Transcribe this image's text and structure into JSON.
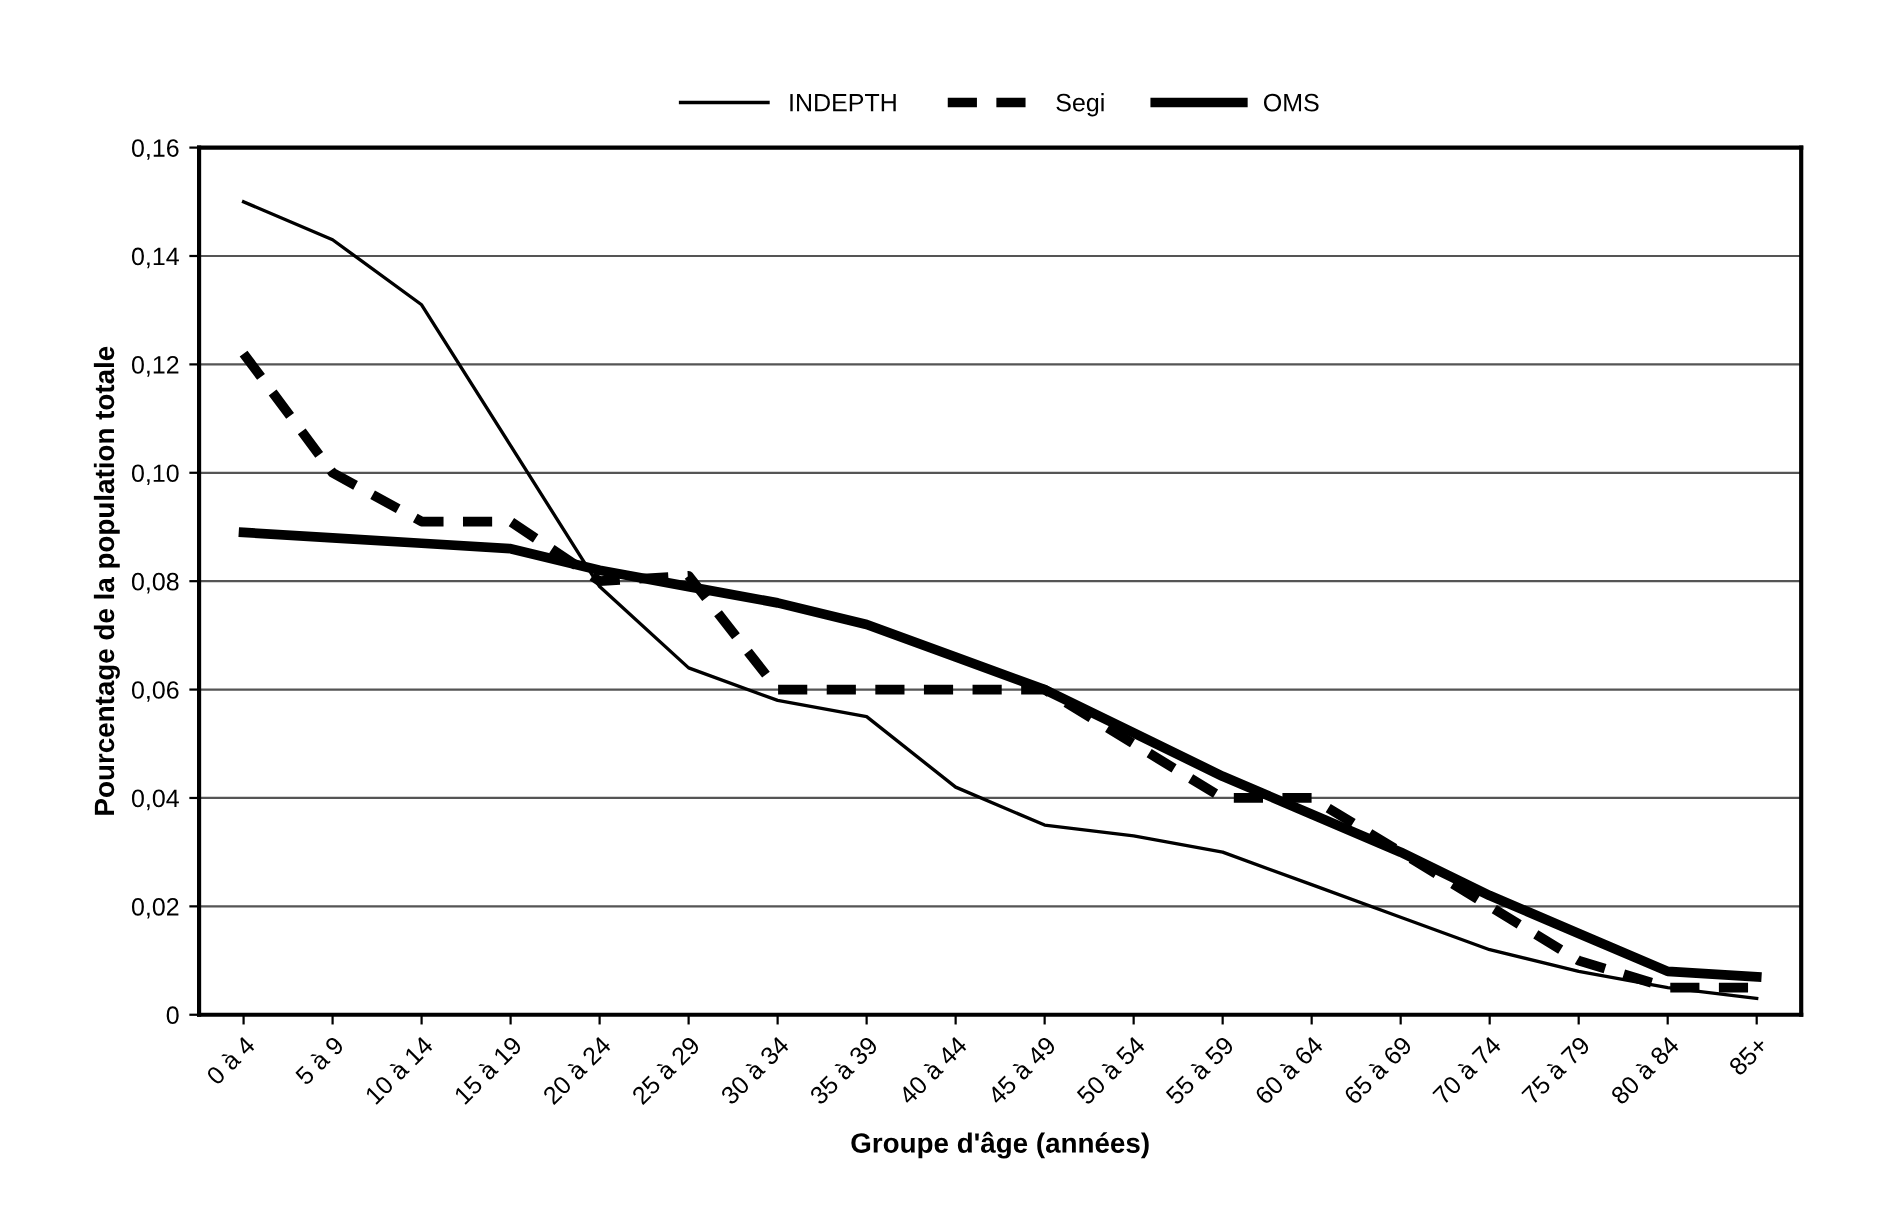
{
  "chart_data": {
    "type": "line",
    "xlabel": "Groupe d'âge (années)",
    "ylabel": "Pourcentage de la population totale",
    "categories": [
      "0 à 4",
      "5 à 9",
      "10 à 14",
      "15 à 19",
      "20 à 24",
      "25 à 29",
      "30 à 34",
      "35 à 39",
      "40 à 44",
      "45 à 49",
      "50 à 54",
      "55 à 59",
      "60 à 64",
      "65 à 69",
      "70 à 74",
      "75 à 79",
      "80 à 84",
      "85+"
    ],
    "series": [
      {
        "name": "INDEPTH",
        "color": "#000000",
        "line_style": "solid",
        "values": [
          0.15,
          0.143,
          0.131,
          0.105,
          0.079,
          0.064,
          0.058,
          0.055,
          0.042,
          0.035,
          0.033,
          0.03,
          0.024,
          0.018,
          0.012,
          0.008,
          0.005,
          0.003
        ]
      },
      {
        "name": "Segi",
        "color": "#000000",
        "line_style": "dashed",
        "values": [
          0.122,
          0.1,
          0.091,
          0.091,
          0.08,
          0.081,
          0.06,
          0.06,
          0.06,
          0.06,
          0.05,
          0.04,
          0.04,
          0.03,
          0.02,
          0.01,
          0.005,
          0.005
        ]
      },
      {
        "name": "OMS",
        "color": "#000000",
        "line_style": "solid",
        "values": [
          0.089,
          0.088,
          0.087,
          0.086,
          0.082,
          0.079,
          0.076,
          0.072,
          0.066,
          0.06,
          0.052,
          0.044,
          0.037,
          0.03,
          0.022,
          0.015,
          0.008,
          0.007
        ]
      }
    ],
    "ylim": [
      0,
      0.16
    ],
    "yticks": [
      {
        "value": 0,
        "label": "0"
      },
      {
        "value": 0.02,
        "label": "0,02"
      },
      {
        "value": 0.04,
        "label": "0,04"
      },
      {
        "value": 0.06,
        "label": "0,06"
      },
      {
        "value": 0.08,
        "label": "0,08"
      },
      {
        "value": 0.1,
        "label": "0,10"
      },
      {
        "value": 0.12,
        "label": "0,12"
      },
      {
        "value": 0.14,
        "label": "0,14"
      },
      {
        "value": 0.16,
        "label": "0,16"
      }
    ],
    "grid": "y",
    "legend": "top",
    "marker": "none"
  }
}
